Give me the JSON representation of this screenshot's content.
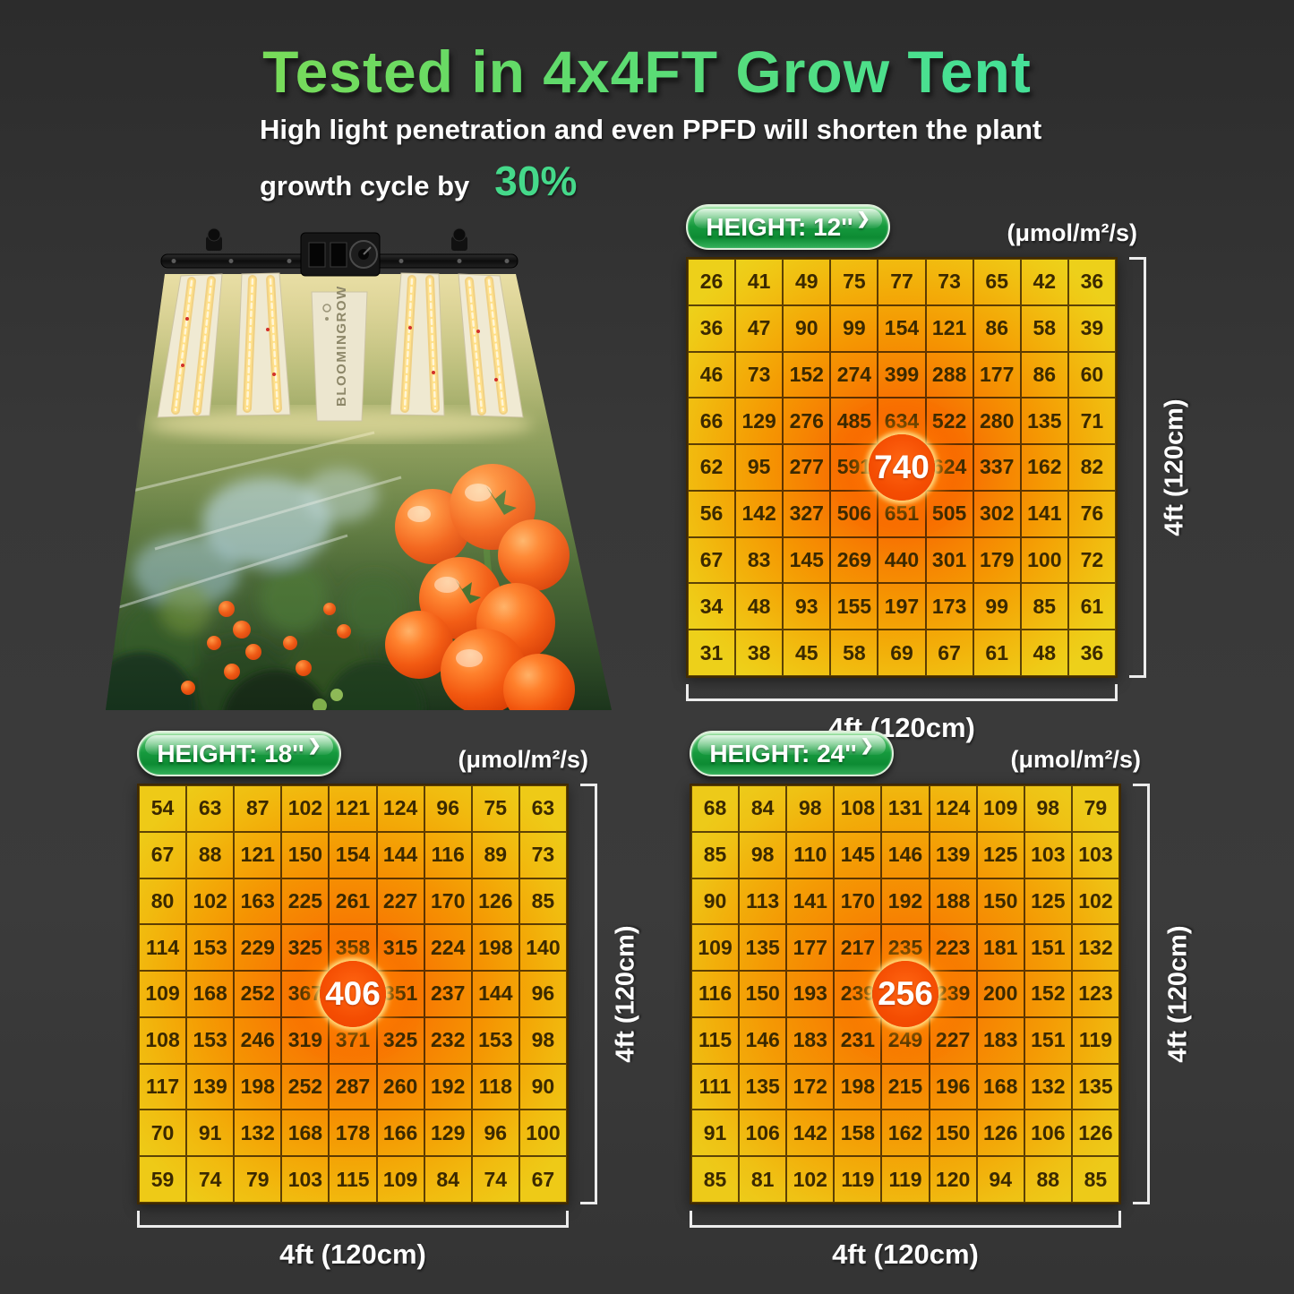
{
  "header": {
    "title": "Tested in 4x4FT Grow Tent",
    "subtitle_line1": "High light penetration and even PPFD will shorten the plant",
    "subtitle_line2": "growth cycle by",
    "subtitle_highlight": "30%"
  },
  "product": {
    "brand": "BLOOMINGROW"
  },
  "ui": {
    "badge_arrow": "❯"
  },
  "colors": {
    "title_gradient_start": "#8fdd4b",
    "title_gradient_end": "#3fe3a6",
    "accent_green": "#45d98a",
    "badge_green": "#169a3e",
    "heat_yellow": "#edd01a",
    "heat_orange": "#f68102",
    "heat_red": "#fb3b00",
    "peak_circle": "#f44d02",
    "background": "#383838",
    "bracket_white": "#ececec"
  },
  "chart_data": [
    {
      "type": "heatmap",
      "title": "HEIGHT: 12''",
      "units": "(μmol/m²/s)",
      "x_label": "4ft (120cm)",
      "y_label": "4ft (120cm)",
      "peak_value": 740,
      "peak_row": 4,
      "peak_col": 4,
      "rows": [
        [
          26,
          41,
          49,
          75,
          77,
          73,
          65,
          42,
          36
        ],
        [
          36,
          47,
          90,
          99,
          154,
          121,
          86,
          58,
          39
        ],
        [
          46,
          73,
          152,
          274,
          399,
          288,
          177,
          86,
          60
        ],
        [
          66,
          129,
          276,
          485,
          634,
          522,
          280,
          135,
          71
        ],
        [
          62,
          95,
          277,
          591,
          740,
          624,
          337,
          162,
          82
        ],
        [
          56,
          142,
          327,
          506,
          651,
          505,
          302,
          141,
          76
        ],
        [
          67,
          83,
          145,
          269,
          440,
          301,
          179,
          100,
          72
        ],
        [
          34,
          48,
          93,
          155,
          197,
          173,
          99,
          85,
          61
        ],
        [
          31,
          38,
          45,
          58,
          69,
          67,
          61,
          48,
          36
        ]
      ]
    },
    {
      "type": "heatmap",
      "title": "HEIGHT: 18''",
      "units": "(μmol/m²/s)",
      "x_label": "4ft (120cm)",
      "y_label": "4ft (120cm)",
      "peak_value": 406,
      "peak_row": 4,
      "peak_col": 4,
      "rows": [
        [
          54,
          63,
          87,
          102,
          121,
          124,
          96,
          75,
          63
        ],
        [
          67,
          88,
          121,
          150,
          154,
          144,
          116,
          89,
          73
        ],
        [
          80,
          102,
          163,
          225,
          261,
          227,
          170,
          126,
          85
        ],
        [
          114,
          153,
          229,
          325,
          358,
          315,
          224,
          198,
          140
        ],
        [
          109,
          168,
          252,
          367,
          406,
          351,
          237,
          144,
          96
        ],
        [
          108,
          153,
          246,
          319,
          371,
          325,
          232,
          153,
          98
        ],
        [
          117,
          139,
          198,
          252,
          287,
          260,
          192,
          118,
          90
        ],
        [
          70,
          91,
          132,
          168,
          178,
          166,
          129,
          96,
          100
        ],
        [
          59,
          74,
          79,
          103,
          115,
          109,
          84,
          74,
          67
        ]
      ]
    },
    {
      "type": "heatmap",
      "title": "HEIGHT: 24''",
      "units": "(μmol/m²/s)",
      "x_label": "4ft (120cm)",
      "y_label": "4ft (120cm)",
      "peak_value": 256,
      "peak_row": 4,
      "peak_col": 4,
      "rows": [
        [
          68,
          84,
          98,
          108,
          131,
          124,
          109,
          98,
          79
        ],
        [
          85,
          98,
          110,
          145,
          146,
          139,
          125,
          103,
          103
        ],
        [
          90,
          113,
          141,
          170,
          192,
          188,
          150,
          125,
          102
        ],
        [
          109,
          135,
          177,
          217,
          235,
          223,
          181,
          151,
          132
        ],
        [
          116,
          150,
          193,
          239,
          256,
          239,
          200,
          152,
          123
        ],
        [
          115,
          146,
          183,
          231,
          249,
          227,
          183,
          151,
          119
        ],
        [
          111,
          135,
          172,
          198,
          215,
          196,
          168,
          132,
          135
        ],
        [
          91,
          106,
          142,
          158,
          162,
          150,
          126,
          106,
          126
        ],
        [
          85,
          81,
          102,
          119,
          119,
          120,
          94,
          88,
          85
        ]
      ]
    }
  ]
}
